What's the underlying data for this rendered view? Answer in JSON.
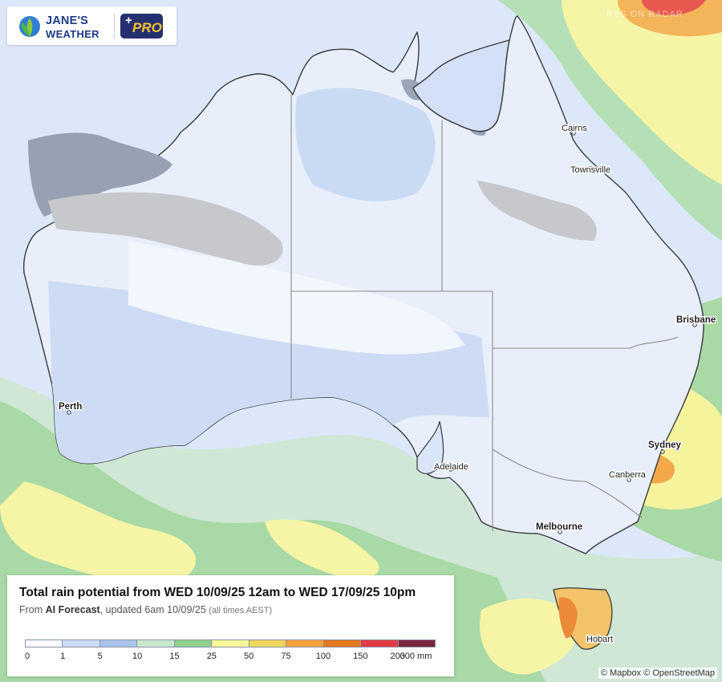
{
  "brand": {
    "line1": "JANE'S",
    "line2": "WEATHER",
    "badge_plus": "+",
    "badge": "PRO",
    "colors": {
      "navy": "#26306f",
      "gold": "#f4c430"
    }
  },
  "watermark": "RSS ON RADAR",
  "cities": [
    {
      "name": "Cairns",
      "bold": false
    },
    {
      "name": "Townsville",
      "bold": false
    },
    {
      "name": "Brisbane",
      "bold": true
    },
    {
      "name": "Sydney",
      "bold": true
    },
    {
      "name": "Canberra",
      "bold": false
    },
    {
      "name": "Melbourne",
      "bold": true
    },
    {
      "name": "Hobart",
      "bold": false
    },
    {
      "name": "Adelaide",
      "bold": false
    },
    {
      "name": "Perth",
      "bold": true
    }
  ],
  "legend": {
    "title": "Total rain potential from WED 10/09/25 12am to WED 17/09/25 10pm",
    "subtitle_prefix": "From",
    "subtitle_source": "AI Forecast",
    "subtitle_updated": ", updated 6am 10/09/25",
    "subtitle_tz": "(all times AEST)",
    "ticks": [
      "0",
      "1",
      "5",
      "10",
      "15",
      "25",
      "50",
      "75",
      "100",
      "150",
      "200",
      "300 mm"
    ],
    "colors": [
      "#f7f9fe",
      "#ccdcf5",
      "#a9c3ea",
      "#c9e6cf",
      "#8fd08d",
      "#f7f79a",
      "#f0d55c",
      "#f4a13a",
      "#e47a1e",
      "#e23b48",
      "#c0103e",
      "#7c2740"
    ]
  },
  "attribution": "© Mapbox © OpenStreetMap"
}
